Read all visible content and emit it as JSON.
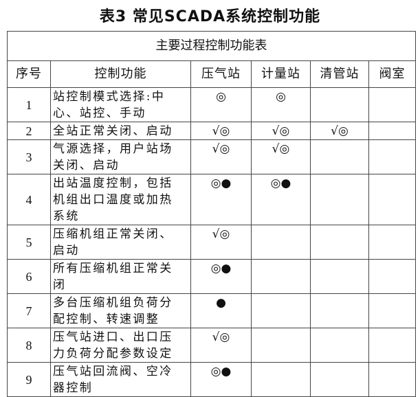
{
  "title": "表3  常见SCADA系统控制功能",
  "table": {
    "caption": "主要过程控制功能表",
    "headers": [
      "序号",
      "控制功能",
      "压气站",
      "计量站",
      "清管站",
      "阀室"
    ],
    "rows": [
      {
        "no": "1",
        "func": [
          " 站控制模式选择:中",
          "心、站控、手动"
        ],
        "marks": [
          "◎",
          "◎",
          "",
          ""
        ]
      },
      {
        "no": "2",
        "func": [
          "全站正常关闭、启动"
        ],
        "marks": [
          "√◎",
          "√◎",
          "√◎",
          ""
        ]
      },
      {
        "no": "3",
        "func": [
          "气源选择，用户站场",
          "关闭、启动"
        ],
        "marks": [
          "√◎",
          "√◎",
          "",
          ""
        ]
      },
      {
        "no": "4",
        "func": [
          "出站温度控制，包括",
          "机组出口温度或加热",
          "系统"
        ],
        "marks": [
          "◎●",
          "◎●",
          "",
          ""
        ]
      },
      {
        "no": "5",
        "func": [
          "压缩机组正常关闭、",
          "启动"
        ],
        "marks": [
          "√◎",
          "",
          "",
          ""
        ]
      },
      {
        "no": "6",
        "func": [
          "所有压缩机组正常关",
          "闭"
        ],
        "marks": [
          "◎●",
          "",
          "",
          ""
        ]
      },
      {
        "no": "7",
        "func": [
          "多台压缩机组负荷分",
          "配控制、转速调整"
        ],
        "marks": [
          "●",
          "",
          "",
          ""
        ]
      },
      {
        "no": "8",
        "func": [
          "压气站进口、出口压",
          "力负荷分配参数设定"
        ],
        "marks": [
          "√◎",
          "",
          "",
          ""
        ]
      },
      {
        "no": "9",
        "func": [
          "压气站回流阀、空冷",
          "器控制"
        ],
        "marks": [
          "◎●",
          "",
          "",
          ""
        ]
      }
    ]
  }
}
